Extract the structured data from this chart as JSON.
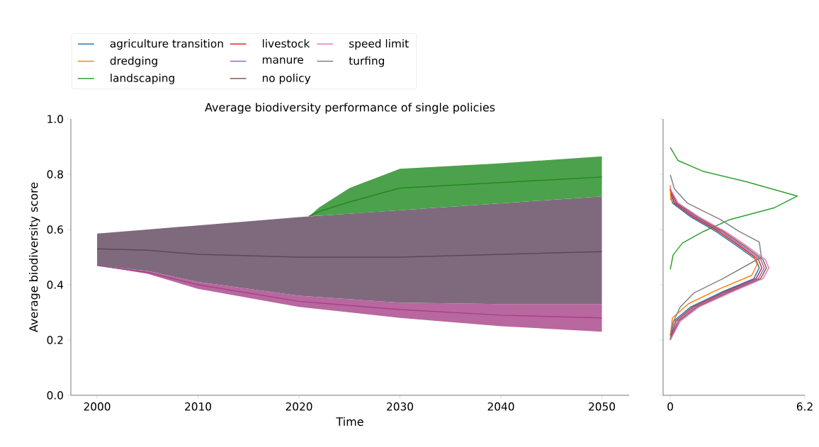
{
  "chart_data": [
    {
      "type": "line",
      "title": "Average biodiversity performance of single policies",
      "xlabel": "Time",
      "ylabel": "Average biodiversity score",
      "xlim": [
        1997.4,
        2052.7
      ],
      "ylim": [
        0,
        1
      ],
      "xticks": [
        2000,
        2010,
        2020,
        2030,
        2040,
        2050
      ],
      "yticks": [
        {
          "value": 0,
          "label": "0.0"
        },
        {
          "value": 0.2,
          "label": "0.2"
        },
        {
          "value": 0.4,
          "label": "0.4"
        },
        {
          "value": 0.6,
          "label": "0.6"
        },
        {
          "value": 0.8,
          "label": "0.8"
        },
        {
          "value": 1,
          "label": "1.0"
        }
      ],
      "series": [
        {
          "color": "#a64187",
          "x": [
            2000,
            2005,
            2010,
            2020,
            2030,
            2040,
            2050
          ],
          "values": [
            0.47,
            0.445,
            0.4,
            0.34,
            0.31,
            0.29,
            0.28
          ],
          "lower": [
            0.47,
            0.44,
            0.385,
            0.32,
            0.28,
            0.25,
            0.23
          ],
          "upper": [
            0.47,
            0.45,
            0.41,
            0.36,
            0.335,
            0.33,
            0.33
          ]
        },
        {
          "color": "#5f455c",
          "x": [
            2000,
            2005,
            2010,
            2020,
            2030,
            2040,
            2050
          ],
          "values": [
            0.53,
            0.525,
            0.51,
            0.5,
            0.5,
            0.51,
            0.52
          ],
          "lower": [
            0.47,
            0.45,
            0.41,
            0.36,
            0.335,
            0.33,
            0.33
          ],
          "upper": [
            0.585,
            0.6,
            0.615,
            0.645,
            0.67,
            0.695,
            0.72
          ]
        },
        {
          "color": "#1f8a1f",
          "x": [
            2021,
            2022,
            2025,
            2030,
            2040,
            2050
          ],
          "values": [
            0.648,
            0.665,
            0.7,
            0.75,
            0.77,
            0.79
          ],
          "lower": [
            0.648,
            0.65,
            0.657,
            0.67,
            0.695,
            0.72
          ],
          "upper": [
            0.648,
            0.68,
            0.75,
            0.82,
            0.84,
            0.865
          ]
        }
      ]
    },
    {
      "type": "line",
      "legend": "top",
      "tick_labels": "x",
      "xlim": [
        -0.33,
        6.2
      ],
      "ylim": [
        0,
        1
      ],
      "xticks": [
        0,
        6.2
      ],
      "yticks": [
        {
          "value": 0,
          "label": null
        },
        {
          "value": 0.2,
          "label": null
        },
        {
          "value": 0.4,
          "label": null
        },
        {
          "value": 0.6,
          "label": null
        },
        {
          "value": 0.8,
          "label": null
        },
        {
          "value": 1,
          "label": null
        }
      ],
      "series": [
        {
          "name": "agriculture transition",
          "color": "#1f77b4",
          "x": [
            0,
            0.1,
            0.95,
            2.1,
            3.05,
            3.95,
            4.1,
            3.85,
            2.3,
            0.95,
            0.15,
            0
          ],
          "values": [
            0.747,
            0.696,
            0.645,
            0.593,
            0.542,
            0.491,
            0.461,
            0.422,
            0.371,
            0.32,
            0.268,
            0.2
          ]
        },
        {
          "name": "dredging",
          "color": "#ff7f0e",
          "x": [
            0,
            0.02,
            0.85,
            2.0,
            2.95,
            3.85,
            4.0,
            3.75,
            2.2,
            0.85,
            0.1,
            0
          ],
          "values": [
            0.76,
            0.708,
            0.657,
            0.605,
            0.554,
            0.503,
            0.473,
            0.434,
            0.383,
            0.332,
            0.28,
            0.215
          ]
        },
        {
          "name": "landscaping",
          "color": "#2ca02c",
          "x": [
            0,
            0.35,
            1.53,
            3.5,
            5.85,
            4.8,
            2.75,
            1.53,
            0.56,
            0.13,
            0
          ],
          "values": [
            0.897,
            0.85,
            0.81,
            0.773,
            0.721,
            0.679,
            0.636,
            0.593,
            0.551,
            0.508,
            0.456
          ]
        },
        {
          "name": "livestock",
          "color": "#d62728",
          "x": [
            0,
            0.18,
            1.05,
            2.22,
            3.17,
            4.06,
            4.22,
            3.95,
            2.42,
            1.05,
            0.24,
            0
          ],
          "values": [
            0.747,
            0.696,
            0.645,
            0.593,
            0.542,
            0.491,
            0.461,
            0.422,
            0.371,
            0.32,
            0.268,
            0.2
          ]
        },
        {
          "name": "manure",
          "color": "#9467bd",
          "x": [
            0,
            0.25,
            1.15,
            2.33,
            3.28,
            4.17,
            4.33,
            4.06,
            2.53,
            1.15,
            0.32,
            0
          ],
          "values": [
            0.747,
            0.696,
            0.645,
            0.593,
            0.542,
            0.491,
            0.461,
            0.422,
            0.371,
            0.32,
            0.268,
            0.2
          ]
        },
        {
          "name": "no policy",
          "color": "#8c564b",
          "x": [
            0,
            0.3,
            1.24,
            2.43,
            3.39,
            4.27,
            4.43,
            4.16,
            2.64,
            1.24,
            0.39,
            0
          ],
          "values": [
            0.747,
            0.696,
            0.645,
            0.593,
            0.542,
            0.491,
            0.461,
            0.422,
            0.371,
            0.32,
            0.268,
            0.2
          ]
        },
        {
          "name": "speed limit",
          "color": "#e377c2",
          "x": [
            0,
            0.36,
            1.33,
            2.53,
            3.5,
            4.38,
            4.54,
            4.27,
            2.75,
            1.33,
            0.46,
            0
          ],
          "values": [
            0.747,
            0.696,
            0.645,
            0.593,
            0.542,
            0.491,
            0.461,
            0.422,
            0.371,
            0.32,
            0.268,
            0.2
          ]
        },
        {
          "name": "turfing",
          "color": "#7f7f7f",
          "x": [
            0,
            0.19,
            0.78,
            2.31,
            3.17,
            4.1,
            4.2,
            2.42,
            1.1,
            0.46,
            0.15,
            0
          ],
          "values": [
            0.798,
            0.747,
            0.696,
            0.636,
            0.593,
            0.555,
            0.5,
            0.422,
            0.371,
            0.32,
            0.268,
            0.217
          ]
        }
      ]
    }
  ]
}
